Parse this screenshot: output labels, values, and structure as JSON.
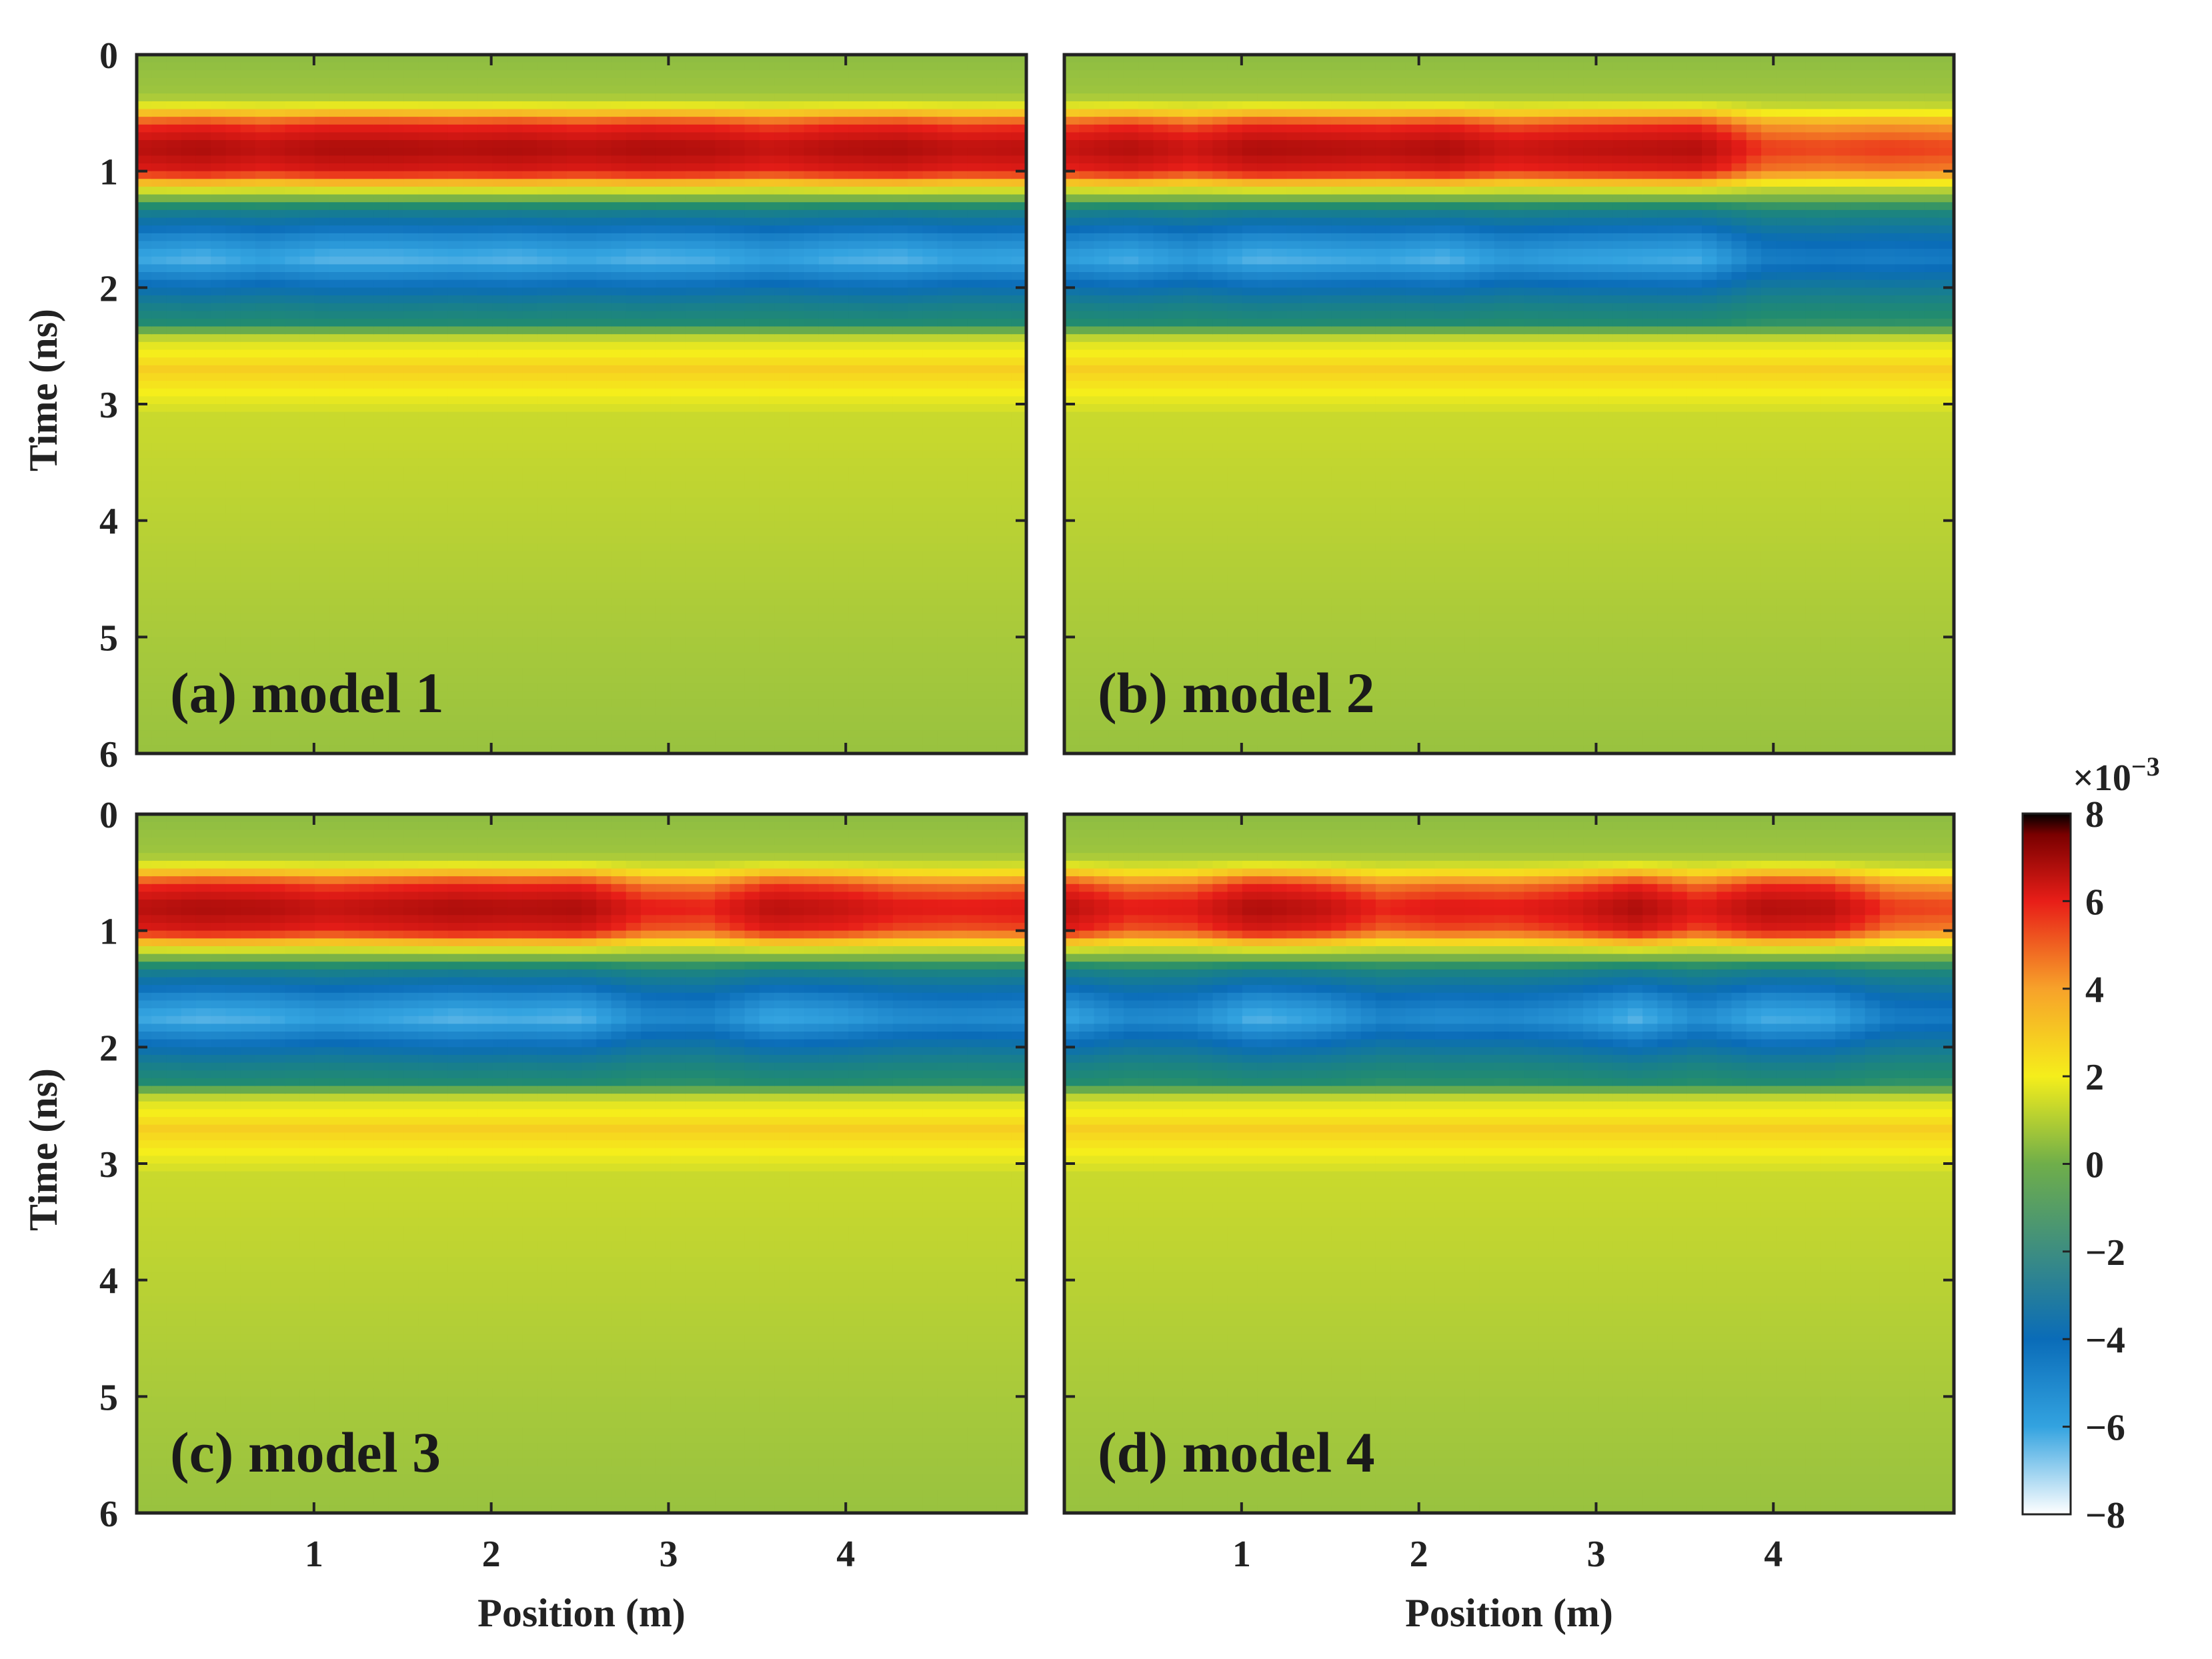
{
  "chart_data": [
    {
      "type": "heatmap",
      "panel_label": "(a) model 1",
      "xlabel": "",
      "ylabel": "Time (ns)",
      "xlim": [
        0,
        5
      ],
      "ylim": [
        0,
        6
      ],
      "x_ticks": [
        "1",
        "2",
        "3",
        "4"
      ],
      "y_ticks": [
        "0",
        "1",
        "2",
        "3",
        "4",
        "5",
        "6"
      ],
      "profile": {
        "times_ns": [
          0,
          0.35,
          0.45,
          0.6,
          0.8,
          1.0,
          1.12,
          1.22,
          1.35,
          1.55,
          1.75,
          1.95,
          2.15,
          2.3,
          2.45,
          2.7,
          2.9,
          3.1,
          6
        ],
        "values": [
          0.5,
          0.8,
          2,
          4.5,
          6,
          5,
          2.5,
          0.5,
          -2.5,
          -5,
          -6.5,
          -4.5,
          -2.5,
          -1.5,
          1.6,
          2.5,
          2,
          1.4,
          0.7
        ]
      },
      "peak_strength": [
        0.9,
        1.0,
        0.85,
        1.0,
        1.0,
        0.95,
        1.0,
        0.9,
        1.0,
        0.95,
        0.8,
        0.95,
        1.0,
        0.85,
        0.9
      ]
    },
    {
      "type": "heatmap",
      "panel_label": "(b) model 2",
      "xlabel": "",
      "ylabel": "",
      "xlim": [
        0,
        5
      ],
      "ylim": [
        0,
        6
      ],
      "x_ticks": [],
      "y_ticks": [],
      "profile": {
        "times_ns": [
          0,
          0.35,
          0.45,
          0.6,
          0.8,
          1.0,
          1.12,
          1.22,
          1.35,
          1.55,
          1.75,
          1.95,
          2.15,
          2.3,
          2.45,
          2.7,
          2.9,
          3.1,
          6
        ],
        "values": [
          0.5,
          0.8,
          2,
          4.5,
          6,
          5,
          2.5,
          0.5,
          -2.5,
          -5,
          -6.5,
          -4.5,
          -2.5,
          -1.5,
          1.6,
          2.5,
          2,
          1.4,
          0.7
        ]
      },
      "peak_strength": [
        0.8,
        0.95,
        0.75,
        1.0,
        0.95,
        0.9,
        1.0,
        0.75,
        0.85,
        0.9,
        0.95,
        0.4,
        0.35,
        0.4,
        0.35
      ]
    },
    {
      "type": "heatmap",
      "panel_label": "(c) model 3",
      "xlabel": "Position (m)",
      "ylabel": "Time (ns)",
      "xlim": [
        0,
        5
      ],
      "ylim": [
        0,
        6
      ],
      "x_ticks": [
        "1",
        "2",
        "3",
        "4"
      ],
      "y_ticks": [
        "0",
        "1",
        "2",
        "3",
        "4",
        "5",
        "6"
      ],
      "profile": {
        "times_ns": [
          0,
          0.35,
          0.45,
          0.6,
          0.8,
          1.0,
          1.12,
          1.22,
          1.35,
          1.55,
          1.75,
          1.95,
          2.15,
          2.3,
          2.45,
          2.7,
          2.9,
          3.1,
          6
        ],
        "values": [
          0.5,
          0.8,
          2,
          4.5,
          6,
          5,
          2.5,
          0.5,
          -2.5,
          -5,
          -6.5,
          -4.5,
          -2.5,
          -1.5,
          1.6,
          2.5,
          2,
          1.4,
          0.7
        ]
      },
      "peak_strength": [
        0.9,
        1.0,
        0.95,
        0.8,
        0.9,
        1.0,
        0.95,
        1.0,
        0.55,
        0.5,
        0.9,
        0.8,
        0.6,
        0.55,
        0.6
      ]
    },
    {
      "type": "heatmap",
      "panel_label": "(d) model 4",
      "xlabel": "Position (m)",
      "ylabel": "",
      "xlim": [
        0,
        5
      ],
      "ylim": [
        0,
        6
      ],
      "x_ticks": [
        "1",
        "2",
        "3",
        "4"
      ],
      "y_ticks": [],
      "profile": {
        "times_ns": [
          0,
          0.35,
          0.45,
          0.6,
          0.8,
          1.0,
          1.12,
          1.22,
          1.35,
          1.55,
          1.75,
          1.95,
          2.15,
          2.3,
          2.45,
          2.7,
          2.9,
          3.1,
          6
        ],
        "values": [
          0.5,
          0.8,
          2,
          4.5,
          6,
          5,
          2.5,
          0.5,
          -2.5,
          -5,
          -6.5,
          -4.5,
          -2.5,
          -1.5,
          1.6,
          2.5,
          2,
          1.4,
          0.7
        ]
      },
      "peak_strength": [
        0.9,
        0.55,
        0.6,
        1.0,
        0.85,
        0.5,
        0.6,
        0.55,
        0.7,
        1.0,
        0.6,
        0.95,
        0.9,
        0.4,
        0.35
      ]
    }
  ],
  "colorbar": {
    "multiplier": "×10",
    "exponent": "−3",
    "range": [
      -8,
      8
    ],
    "ticks": [
      "8",
      "6",
      "4",
      "2",
      "0",
      "−2",
      "−4",
      "−6",
      "−8"
    ],
    "colors": [
      "#ffffff",
      "#33a3e0",
      "#0a6cb8",
      "#6fae4a",
      "#f5ee1b",
      "#f7a22a",
      "#e81e18",
      "#7a0000",
      "#000000"
    ]
  }
}
